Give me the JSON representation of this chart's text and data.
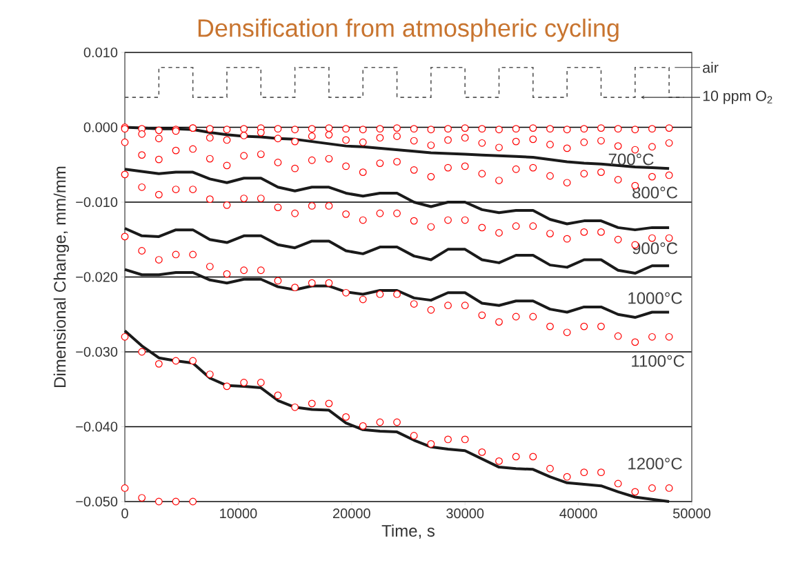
{
  "chart_data": {
    "type": "line",
    "title": "Densification from atmospheric cycling",
    "xlabel": "Time, s",
    "ylabel": "Dimensional Change, mm/mm",
    "xlim": [
      0,
      50000
    ],
    "ylim": [
      -0.05,
      0.01
    ],
    "xticks": [
      0,
      10000,
      20000,
      30000,
      40000,
      50000
    ],
    "yticks": [
      {
        "value": -0.05,
        "label": "−0.050"
      },
      {
        "value": -0.04,
        "label": "−0.040"
      },
      {
        "value": -0.03,
        "label": "−0.030"
      },
      {
        "value": -0.02,
        "label": "−0.020"
      },
      {
        "value": -0.01,
        "label": "−0.010"
      },
      {
        "value": 0,
        "label": "0.000"
      },
      {
        "value": 0.01,
        "label": "0.010"
      }
    ],
    "grid": "y",
    "x": [
      0,
      1500,
      3000,
      4500,
      6000,
      7500,
      9000,
      10500,
      12000,
      13500,
      15000,
      16500,
      18000,
      19500,
      21000,
      22500,
      24000,
      25500,
      27000,
      28500,
      30000,
      31500,
      33000,
      34500,
      36000,
      37500,
      39000,
      40500,
      42000,
      43500,
      45000,
      46500,
      48000
    ],
    "series": [
      {
        "type": "step",
        "color": "#555555",
        "line_style": "dashed",
        "marker": "none",
        "x": [
          0,
          3000,
          6000,
          9000,
          12000,
          15000,
          18000,
          21000,
          24000,
          27000,
          30000,
          33000,
          36000,
          39000,
          42000,
          45000,
          48000,
          49300
        ],
        "values": [
          0.004,
          0.008,
          0.004,
          0.008,
          0.004,
          0.008,
          0.004,
          0.008,
          0.004,
          0.008,
          0.004,
          0.008,
          0.004,
          0.008,
          0.004,
          0.008,
          0.004,
          0.004
        ]
      },
      {
        "color": "#1a1a1a",
        "marker": "none",
        "values": [
          0.0,
          -0.0001,
          -0.0002,
          -0.0002,
          -0.0003,
          -0.0007,
          -0.001,
          -0.0012,
          -0.0013,
          -0.0015,
          -0.0016,
          -0.0019,
          -0.0022,
          -0.0025,
          -0.0026,
          -0.0028,
          -0.003,
          -0.0032,
          -0.0034,
          -0.0035,
          -0.0036,
          -0.0037,
          -0.0038,
          -0.0039,
          -0.004,
          -0.0043,
          -0.0046,
          -0.0048,
          -0.0049,
          -0.0051,
          -0.0053,
          -0.0054,
          -0.0055
        ]
      },
      {
        "color": "#1a1a1a",
        "marker": "none",
        "values": [
          -0.0056,
          -0.0059,
          -0.0062,
          -0.006,
          -0.006,
          -0.0069,
          -0.0074,
          -0.0068,
          -0.0068,
          -0.008,
          -0.0085,
          -0.008,
          -0.008,
          -0.0088,
          -0.0092,
          -0.0088,
          -0.0088,
          -0.01,
          -0.0106,
          -0.01,
          -0.01,
          -0.011,
          -0.0114,
          -0.0111,
          -0.0111,
          -0.0123,
          -0.0129,
          -0.0125,
          -0.0125,
          -0.0134,
          -0.0137,
          -0.0134,
          -0.0134
        ]
      },
      {
        "color": "#1a1a1a",
        "marker": "none",
        "values": [
          -0.0135,
          -0.0145,
          -0.0146,
          -0.0137,
          -0.0137,
          -0.015,
          -0.0154,
          -0.0145,
          -0.0145,
          -0.0157,
          -0.0161,
          -0.0152,
          -0.0152,
          -0.0165,
          -0.0169,
          -0.016,
          -0.016,
          -0.0172,
          -0.0177,
          -0.0163,
          -0.0163,
          -0.0177,
          -0.0181,
          -0.0171,
          -0.0171,
          -0.0184,
          -0.0187,
          -0.0177,
          -0.0177,
          -0.0191,
          -0.0195,
          -0.0185,
          -0.0185
        ]
      },
      {
        "color": "#1a1a1a",
        "marker": "none",
        "values": [
          -0.019,
          -0.0197,
          -0.0197,
          -0.0194,
          -0.0194,
          -0.0204,
          -0.0208,
          -0.0203,
          -0.0203,
          -0.0213,
          -0.0217,
          -0.0212,
          -0.0212,
          -0.022,
          -0.0223,
          -0.0218,
          -0.0218,
          -0.0228,
          -0.0231,
          -0.0221,
          -0.0221,
          -0.0235,
          -0.0238,
          -0.0232,
          -0.0232,
          -0.0243,
          -0.0247,
          -0.024,
          -0.024,
          -0.025,
          -0.0254,
          -0.0247,
          -0.0247
        ]
      },
      {
        "color": "#1a1a1a",
        "marker": "none",
        "values": [
          -0.0272,
          -0.0292,
          -0.0308,
          -0.0312,
          -0.0315,
          -0.0335,
          -0.0345,
          -0.0346,
          -0.0348,
          -0.0365,
          -0.0374,
          -0.0377,
          -0.0378,
          -0.0395,
          -0.0404,
          -0.0406,
          -0.0407,
          -0.0418,
          -0.0427,
          -0.043,
          -0.0432,
          -0.0443,
          -0.0454,
          -0.0456,
          -0.0457,
          -0.0467,
          -0.0475,
          -0.0477,
          -0.0479,
          -0.0487,
          -0.0494,
          -0.0497,
          -0.05
        ]
      },
      {
        "type": "scatter",
        "color": "#ff0000",
        "marker": "circle",
        "values": [
          0.0,
          -0.0002,
          -0.0004,
          -0.0003,
          -0.0001,
          -0.0002,
          -0.0003,
          -0.0002,
          -0.0001,
          -0.0002,
          -0.0003,
          -0.0002,
          -0.0001,
          -0.0002,
          -0.0003,
          -0.0002,
          -0.0001,
          -0.0002,
          -0.0003,
          -0.0002,
          -0.0001,
          -0.0002,
          -0.0003,
          -0.0002,
          -0.0001,
          -0.0002,
          -0.0003,
          -0.0002,
          -0.0001,
          -0.0002,
          -0.0003,
          -0.0002,
          -0.0001
        ]
      },
      {
        "type": "scatter",
        "color": "#ff0000",
        "marker": "circle",
        "values": [
          -0.0002,
          -0.0009,
          -0.0015,
          -0.0005,
          -0.0001,
          -0.0014,
          -0.0017,
          -0.0011,
          -0.0007,
          -0.0015,
          -0.0019,
          -0.0012,
          -0.001,
          -0.0017,
          -0.002,
          -0.0014,
          -0.0012,
          -0.0018,
          -0.0024,
          -0.0017,
          -0.0014,
          -0.0021,
          -0.0027,
          -0.0019,
          -0.0016,
          -0.0023,
          -0.0028,
          -0.002,
          -0.0018,
          -0.0025,
          -0.003,
          -0.0026,
          -0.0021
        ]
      },
      {
        "type": "scatter",
        "color": "#ff0000",
        "marker": "circle",
        "values": [
          -0.002,
          -0.0037,
          -0.0043,
          -0.0031,
          -0.0029,
          -0.0042,
          -0.0051,
          -0.0038,
          -0.0036,
          -0.0047,
          -0.0055,
          -0.0044,
          -0.0042,
          -0.0052,
          -0.006,
          -0.0048,
          -0.0046,
          -0.0057,
          -0.0066,
          -0.0054,
          -0.0052,
          -0.0062,
          -0.0071,
          -0.0056,
          -0.0054,
          -0.0065,
          -0.0074,
          -0.0062,
          -0.006,
          -0.007,
          -0.0078,
          -0.0066,
          -0.0064
        ]
      },
      {
        "type": "scatter",
        "color": "#ff0000",
        "marker": "circle",
        "values": [
          -0.0063,
          -0.008,
          -0.009,
          -0.0083,
          -0.0083,
          -0.0096,
          -0.0104,
          -0.0095,
          -0.0095,
          -0.0107,
          -0.0115,
          -0.0105,
          -0.0105,
          -0.0116,
          -0.0124,
          -0.0115,
          -0.0115,
          -0.0125,
          -0.0133,
          -0.0124,
          -0.0124,
          -0.0134,
          -0.0141,
          -0.0132,
          -0.0132,
          -0.0142,
          -0.0149,
          -0.014,
          -0.014,
          -0.015,
          -0.0157,
          -0.0148,
          -0.0148
        ]
      },
      {
        "type": "scatter",
        "color": "#ff0000",
        "marker": "circle",
        "values": [
          -0.0146,
          -0.0165,
          -0.0177,
          -0.017,
          -0.017,
          -0.0186,
          -0.0196,
          -0.0191,
          -0.0191,
          -0.0205,
          -0.0214,
          -0.0208,
          -0.0208,
          -0.0221,
          -0.023,
          -0.0223,
          -0.0223,
          -0.0236,
          -0.0244,
          -0.0238,
          -0.0238,
          -0.0251,
          -0.026,
          -0.0253,
          -0.0253,
          -0.0266,
          -0.0274,
          -0.0266,
          -0.0266,
          -0.0279,
          -0.0287,
          -0.028,
          -0.028
        ]
      },
      {
        "type": "scatter",
        "color": "#ff0000",
        "marker": "circle",
        "values": [
          -0.028,
          -0.03,
          -0.0316,
          -0.0312,
          -0.0312,
          -0.033,
          -0.0346,
          -0.0341,
          -0.0341,
          -0.0358,
          -0.0374,
          -0.0369,
          -0.0369,
          -0.0387,
          -0.0399,
          -0.0394,
          -0.0394,
          -0.0412,
          -0.0423,
          -0.0417,
          -0.0417,
          -0.0434,
          -0.0446,
          -0.044,
          -0.044,
          -0.0456,
          -0.0467,
          -0.0461,
          -0.0461,
          -0.0476,
          -0.0487,
          -0.0482,
          -0.0482
        ]
      },
      {
        "type": "scatter",
        "color": "#ff0000",
        "marker": "circle",
        "values": [
          -0.0482,
          -0.0495,
          -0.05,
          -0.05,
          -0.05,
          null,
          null,
          null,
          null,
          null,
          null,
          null,
          null,
          null,
          null,
          null,
          null,
          null,
          null,
          null,
          null,
          null,
          null,
          null,
          null,
          null,
          null,
          null,
          null,
          null,
          null,
          null,
          null
        ]
      }
    ],
    "annotations": [
      "air",
      "10 ppm O$_{2}$",
      "700°C",
      "800°C",
      "900°C",
      "1000°C",
      "1100°C",
      "1200°C"
    ]
  }
}
